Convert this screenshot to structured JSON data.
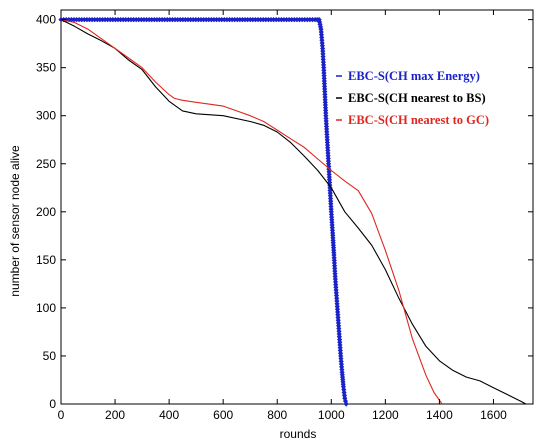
{
  "chart_data": {
    "type": "line",
    "title": "",
    "xlabel": "rounds",
    "ylabel": "number of sensor node alive",
    "xlim": [
      0,
      1750
    ],
    "ylim": [
      0,
      410
    ],
    "xticks": [
      0,
      200,
      400,
      600,
      800,
      1000,
      1200,
      1400,
      1600
    ],
    "yticks": [
      0,
      50,
      100,
      150,
      200,
      250,
      300,
      350,
      400
    ],
    "grid": false,
    "legend_position": "upper-right (inside axes)",
    "series": [
      {
        "name": "EBC-S(CH max Energy)",
        "color": "#1a22c8",
        "marker": "diamond",
        "x": [
          0,
          940,
          955,
          962,
          968,
          972,
          976,
          980,
          985,
          990,
          995,
          1000,
          1005,
          1010,
          1015,
          1020,
          1025,
          1030,
          1035,
          1040,
          1045,
          1050,
          1055
        ],
        "y": [
          400,
          400,
          400,
          390,
          370,
          350,
          325,
          300,
          275,
          250,
          225,
          200,
          178,
          155,
          130,
          110,
          90,
          70,
          50,
          33,
          18,
          6,
          0
        ]
      },
      {
        "name": "EBC-S(CH nearest to BS)",
        "color": "#000000",
        "marker": "none",
        "x": [
          0,
          50,
          100,
          150,
          200,
          250,
          300,
          350,
          400,
          450,
          500,
          600,
          700,
          750,
          800,
          850,
          900,
          950,
          1000,
          1050,
          1100,
          1150,
          1200,
          1250,
          1300,
          1350,
          1400,
          1450,
          1500,
          1550,
          1600,
          1650,
          1700,
          1720
        ],
        "y": [
          400,
          393,
          385,
          378,
          370,
          358,
          348,
          330,
          315,
          305,
          302,
          300,
          294,
          290,
          283,
          272,
          258,
          243,
          225,
          200,
          183,
          165,
          140,
          110,
          83,
          60,
          45,
          35,
          28,
          24,
          17,
          10,
          3,
          0
        ]
      },
      {
        "name": "EBC-S(CH nearest to GC)",
        "color": "#e0261e",
        "marker": "none",
        "x": [
          0,
          50,
          100,
          150,
          200,
          250,
          300,
          350,
          400,
          420,
          450,
          500,
          550,
          600,
          650,
          700,
          750,
          800,
          850,
          900,
          950,
          1000,
          1050,
          1100,
          1150,
          1200,
          1250,
          1300,
          1350,
          1380,
          1400,
          1410
        ],
        "y": [
          400,
          397,
          390,
          380,
          370,
          360,
          350,
          335,
          322,
          318,
          316,
          314,
          312,
          310,
          305,
          300,
          294,
          285,
          276,
          267,
          255,
          243,
          232,
          222,
          198,
          160,
          118,
          68,
          30,
          12,
          4,
          0
        ]
      }
    ]
  }
}
